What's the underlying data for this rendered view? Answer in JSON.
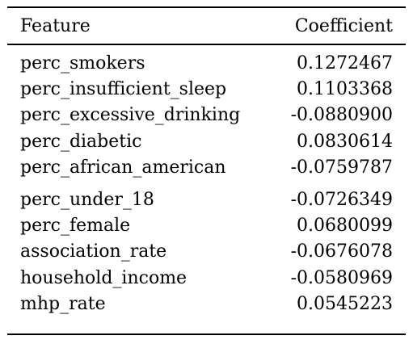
{
  "table": {
    "headers": {
      "feature": "Feature",
      "coefficient": "Coefficient"
    },
    "rows": [
      {
        "feature": "perc_smokers",
        "coefficient": "0.1272467"
      },
      {
        "feature": "perc_insufficient_sleep",
        "coefficient": "0.1103368"
      },
      {
        "feature": "perc_excessive_drinking",
        "coefficient": "-0.0880900"
      },
      {
        "feature": "perc_diabetic",
        "coefficient": "0.0830614"
      },
      {
        "feature": "perc_african_american",
        "coefficient": "-0.0759787"
      },
      {
        "feature": "perc_under_18",
        "coefficient": "-0.0726349"
      },
      {
        "feature": "perc_female",
        "coefficient": "0.0680099"
      },
      {
        "feature": "association_rate",
        "coefficient": "-0.0676078"
      },
      {
        "feature": "household_income",
        "coefficient": "-0.0580969"
      },
      {
        "feature": "mhp_rate",
        "coefficient": "0.0545223"
      }
    ]
  }
}
